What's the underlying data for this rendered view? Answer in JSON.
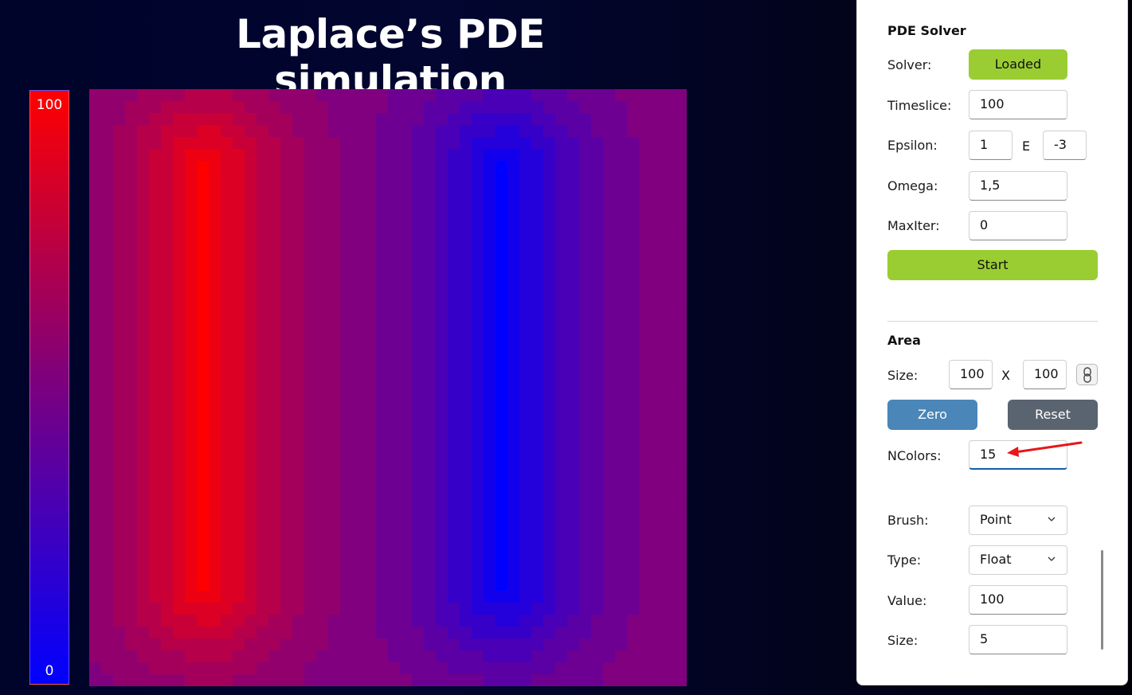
{
  "page": {
    "title": "Laplace’s PDE simulation"
  },
  "color_scale": {
    "max_label": "100",
    "min_label": "0",
    "colors": {
      "high": "#ff0000",
      "mid": "#7a0080",
      "low": "#0000ff"
    }
  },
  "heatmap": {
    "grid_size": [
      100,
      100
    ],
    "ncolors": 15,
    "value_range": [
      0,
      100
    ],
    "description_sources": [
      {
        "kind": "hot",
        "value": 100
      },
      {
        "kind": "cold",
        "value": 0
      }
    ]
  },
  "panel": {
    "solver_section": {
      "title": "PDE Solver",
      "solver_label": "Solver:",
      "solver_status": "Loaded",
      "timeslice_label": "Timeslice:",
      "timeslice_value": "100",
      "epsilon_label": "Epsilon:",
      "epsilon_mantissa": "1",
      "epsilon_e": "E",
      "epsilon_exponent": "-3",
      "omega_label": "Omega:",
      "omega_value": "1,5",
      "maxiter_label": "MaxIter:",
      "maxiter_value": "0",
      "start_label": "Start"
    },
    "area_section": {
      "title": "Area",
      "size_label": "Size:",
      "size_w": "100",
      "size_x": "X",
      "size_h": "100",
      "zero_label": "Zero",
      "reset_label": "Reset",
      "ncolors_label": "NColors:",
      "ncolors_value": "15",
      "brush_label": "Brush:",
      "brush_value": "Point",
      "type_label": "Type:",
      "type_value": "Float",
      "value_label": "Value:",
      "value_value": "100",
      "brush_size_label": "Size:",
      "brush_size_value": "5"
    },
    "colors": {
      "green": "#9acd32",
      "blue": "#4a86b8",
      "gray": "#5a6370",
      "focus": "#0f5fa8"
    }
  },
  "annotation": {
    "arrow_color": "#e8161c"
  }
}
